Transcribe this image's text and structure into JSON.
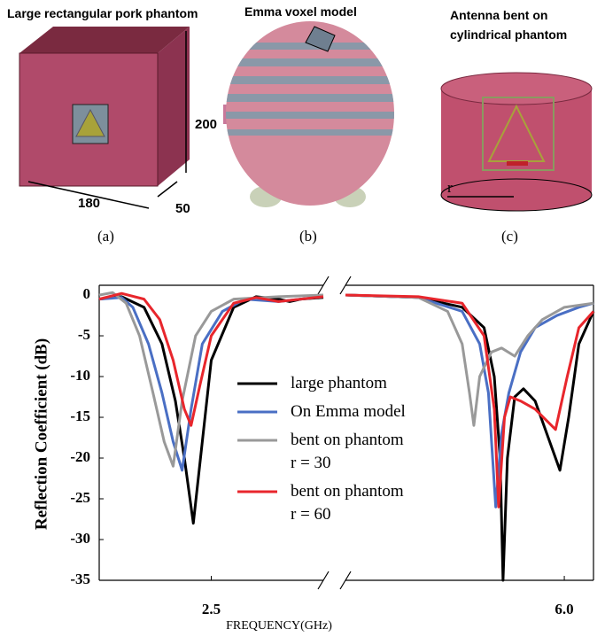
{
  "panels": [
    {
      "title": "Large rectangular pork phantom",
      "label": "(a)",
      "dimensions": [
        180,
        200,
        50
      ]
    },
    {
      "title": "Emma voxel model",
      "label": "(b)"
    },
    {
      "title": "Antenna bent on\ncylindrical phantom",
      "label": "(c)",
      "radius_label": "r"
    }
  ],
  "chart_data": {
    "type": "line",
    "xlabel": "FREQUENCY(GHz)",
    "ylabel": "Reflection Coefficient (dB)",
    "xlim": [
      2.0,
      6.2
    ],
    "x_break": [
      3.0,
      4.5
    ],
    "xticks": [
      2.5,
      {
        "value": 6,
        "label": "6.0"
      }
    ],
    "ylim": [
      -35,
      1.2
    ],
    "yticks": [
      0,
      -5,
      -10,
      -15,
      -20,
      -25,
      -30,
      -35
    ],
    "series": [
      {
        "name": "large phantom",
        "color": "#000000",
        "x": [
          2.0,
          2.1,
          2.2,
          2.28,
          2.34,
          2.38,
          2.42,
          2.46,
          2.5,
          2.6,
          2.7,
          2.8,
          2.85,
          2.9,
          3.0,
          4.5,
          5.0,
          5.3,
          5.45,
          5.52,
          5.56,
          5.58,
          5.61,
          5.66,
          5.72,
          5.8,
          5.9,
          5.97,
          6.03,
          6.1,
          6.2
        ],
        "values": [
          -0.5,
          -0.2,
          -1.5,
          -6,
          -13,
          -20,
          -28,
          -18,
          -8,
          -1.5,
          -0.2,
          -0.5,
          -0.8,
          -0.5,
          -0.3,
          0,
          -0.3,
          -1.5,
          -4,
          -10,
          -20,
          -35,
          -20,
          -12.5,
          -11.5,
          -13,
          -18,
          -21.5,
          -15,
          -6,
          -2
        ]
      },
      {
        "name": "On Emma model",
        "color": "#4a6fc4",
        "x": [
          2.0,
          2.1,
          2.15,
          2.22,
          2.28,
          2.33,
          2.37,
          2.41,
          2.46,
          2.55,
          2.65,
          2.8,
          3.0,
          4.5,
          5.0,
          5.3,
          5.42,
          5.48,
          5.53,
          5.57,
          5.62,
          5.7,
          5.8,
          5.95,
          6.1,
          6.2
        ],
        "values": [
          -0.5,
          -0.3,
          -1.5,
          -6,
          -12,
          -18,
          -21.5,
          -14,
          -6,
          -2,
          -0.5,
          -0.8,
          -0.2,
          0,
          -0.3,
          -2,
          -6,
          -12,
          -26,
          -17,
          -12,
          -7,
          -4,
          -2.5,
          -1.5,
          -1
        ]
      },
      {
        "name": "bent on phantom\nr = 30",
        "color": "#999999",
        "x": [
          2.0,
          2.06,
          2.12,
          2.18,
          2.24,
          2.29,
          2.33,
          2.37,
          2.43,
          2.5,
          2.6,
          2.8,
          3.0,
          4.5,
          5.0,
          5.2,
          5.3,
          5.35,
          5.38,
          5.42,
          5.5,
          5.57,
          5.66,
          5.75,
          5.85,
          6.0,
          6.2
        ],
        "values": [
          0,
          0.3,
          -1,
          -5,
          -12,
          -18,
          -21,
          -13,
          -5,
          -2,
          -0.5,
          -0.2,
          0,
          0,
          -0.3,
          -2,
          -6,
          -12,
          -16,
          -10,
          -7,
          -6.5,
          -7.5,
          -5,
          -3,
          -1.5,
          -1
        ]
      },
      {
        "name": "bent on phantom\nr = 60",
        "color": "#e8262c",
        "x": [
          2.0,
          2.1,
          2.2,
          2.27,
          2.33,
          2.38,
          2.41,
          2.45,
          2.5,
          2.6,
          2.7,
          2.8,
          3.0,
          4.5,
          5.0,
          5.3,
          5.45,
          5.52,
          5.55,
          5.59,
          5.63,
          5.7,
          5.8,
          5.94,
          6.02,
          6.1,
          6.2
        ],
        "values": [
          -0.5,
          0.2,
          -0.5,
          -3,
          -8,
          -14,
          -16,
          -11,
          -5,
          -1,
          -0.3,
          -0.8,
          -0.2,
          0,
          -0.2,
          -1,
          -5,
          -14,
          -26,
          -15,
          -12.5,
          -13,
          -14,
          -16.5,
          -10,
          -4,
          -2
        ]
      }
    ]
  }
}
